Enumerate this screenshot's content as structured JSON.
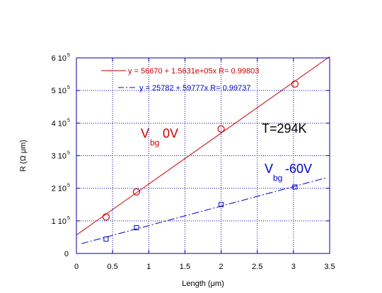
{
  "chart_data": {
    "type": "scatter",
    "xlabel": "Length (μm)",
    "ylabel": "R (Ω μm)",
    "xlim": [
      0,
      3.5
    ],
    "ylim": [
      0,
      600000
    ],
    "grid": true,
    "x_ticks": [
      {
        "value": 0,
        "label": "0"
      },
      {
        "value": 0.5,
        "label": "0.5"
      },
      {
        "value": 1,
        "label": "1"
      },
      {
        "value": 1.5,
        "label": "1.5"
      },
      {
        "value": 2,
        "label": "2"
      },
      {
        "value": 2.5,
        "label": "2.5"
      },
      {
        "value": 3,
        "label": "3"
      },
      {
        "value": 3.5,
        "label": "3.5"
      }
    ],
    "y_ticks": [
      {
        "value": 0,
        "mant": "0",
        "exp": ""
      },
      {
        "value": 100000,
        "mant": "1 10",
        "exp": "5"
      },
      {
        "value": 200000,
        "mant": "2 10",
        "exp": "5"
      },
      {
        "value": 300000,
        "mant": "3 10",
        "exp": "5"
      },
      {
        "value": 400000,
        "mant": "4 10",
        "exp": "5"
      },
      {
        "value": 500000,
        "mant": "5 10",
        "exp": "5"
      },
      {
        "value": 600000,
        "mant": "6 10",
        "exp": "5"
      }
    ],
    "series": [
      {
        "label_main": "V",
        "label_sub": "bg",
        "label_tail": "0V",
        "color": "#cc0000",
        "marker": "circle",
        "x": [
          0.41,
          0.83,
          2.0,
          3.02
        ],
        "y": [
          112000,
          189000,
          382000,
          520000
        ],
        "fit": {
          "intercept": 56670,
          "slope": 156310,
          "x_range": [
            0.0,
            3.5
          ],
          "legend": "y = 56670 + 1.5631e+05x   R= 0.99803",
          "dash": false
        }
      },
      {
        "label_main": "V",
        "label_sub": "bg",
        "label_tail": "-60V",
        "color": "#0000cc",
        "marker": "square",
        "x": [
          0.41,
          0.83,
          2.0,
          3.02
        ],
        "y": [
          44000,
          79000,
          150000,
          204000
        ],
        "fit": {
          "intercept": 25782,
          "slope": 59777,
          "x_range": [
            0.07,
            3.45
          ],
          "legend": "y = 25782 + 59777x   R= 0.99737",
          "dash": true
        }
      }
    ],
    "annotation": "T=294K"
  }
}
